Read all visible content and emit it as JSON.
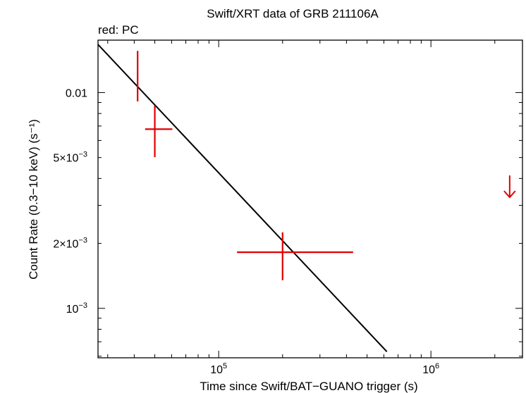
{
  "chart_data": {
    "type": "scatter",
    "title": "Swift/XRT data of GRB 211106A",
    "subtitle": "red: PC",
    "xlabel": "Time since Swift/BAT−GUANO trigger (s)",
    "ylabel": "Count Rate (0.3−10 keV) (s⁻¹)",
    "xscale": "log",
    "yscale": "log",
    "xlim": [
      27000,
      2700000
    ],
    "ylim": [
      0.00059,
      0.0175
    ],
    "x_ticks": [
      {
        "value": 100000,
        "base": "10",
        "exp": "5"
      },
      {
        "value": 1000000,
        "base": "10",
        "exp": "6"
      }
    ],
    "y_ticks": [
      {
        "value": 0.01,
        "label": "0.01",
        "base": "",
        "exp": ""
      },
      {
        "value": 0.005,
        "label": "",
        "base": "5×10",
        "exp": "−3"
      },
      {
        "value": 0.002,
        "label": "",
        "base": "2×10",
        "exp": "−3"
      },
      {
        "value": 0.001,
        "label": "",
        "base": "10",
        "exp": "−3"
      }
    ],
    "series": [
      {
        "color": "#e00000",
        "points": [
          {
            "x": 41500,
            "y": 0.0118,
            "xerr": [
              41200,
              41800
            ],
            "yerr": [
              0.0091,
              0.0156
            ]
          },
          {
            "x": 50000,
            "y": 0.00677,
            "xerr": [
              45000,
              60500
            ],
            "yerr": [
              0.00502,
              0.0087
            ]
          },
          {
            "x": 200000,
            "y": 0.00182,
            "xerr": [
              122000,
              430000
            ],
            "yerr": [
              0.00135,
              0.00225
            ]
          }
        ],
        "upper_limits": [
          {
            "x": 2350000,
            "y": 0.00413
          }
        ]
      }
    ],
    "model_line": {
      "color": "#000000",
      "from": {
        "x": 27000,
        "y": 0.0167
      },
      "to": {
        "x": 620000,
        "y": 0.00063
      }
    },
    "grid": false,
    "legend": "none"
  }
}
